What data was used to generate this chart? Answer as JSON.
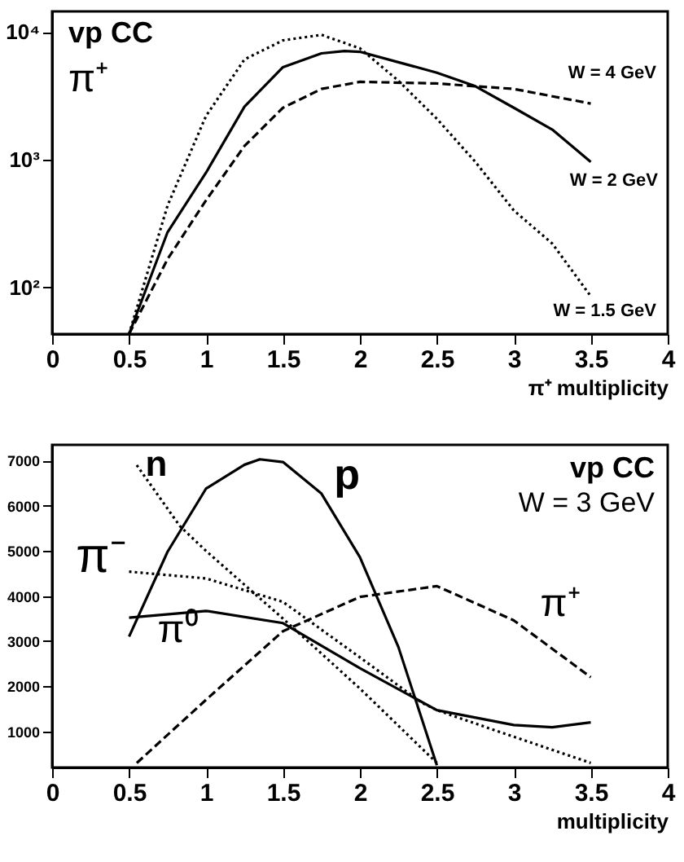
{
  "chart_data": [
    {
      "type": "line",
      "log": "y",
      "xlabel": "π⁺ multiplicity",
      "xlim": [
        0,
        4
      ],
      "xticks": [
        0,
        0.5,
        1,
        1.5,
        2,
        2.5,
        3,
        3.5,
        4
      ],
      "ylim": [
        43,
        14500
      ],
      "yticks": [
        {
          "value": 100,
          "label": "10²"
        },
        {
          "value": 1000,
          "label": "10³"
        },
        {
          "value": 10000,
          "label": "10⁴"
        }
      ],
      "annotations": [
        "vp CC",
        "π⁺",
        "W = 4 GeV",
        "W = 2 GeV",
        "W = 1.5 GeV"
      ],
      "series": [
        {
          "color": "#000000",
          "line_style": "dotted",
          "x": [
            0.5,
            0.75,
            1,
            1.25,
            1.5,
            1.75,
            2,
            2.25,
            2.5,
            2.75,
            3,
            3.25,
            3.5
          ],
          "values": [
            43,
            436,
            2200,
            6100,
            8600,
            9500,
            7450,
            4150,
            2090,
            960,
            400,
            220,
            85
          ]
        },
        {
          "color": "#000000",
          "line_style": "solid",
          "x": [
            0.5,
            0.75,
            1,
            1.25,
            1.5,
            1.75,
            1.9,
            2,
            2.25,
            2.5,
            2.75,
            3,
            3.25,
            3.5
          ],
          "values": [
            43,
            270,
            790,
            2600,
            5300,
            6800,
            7100,
            7000,
            5800,
            4800,
            3760,
            2550,
            1720,
            960
          ]
        },
        {
          "color": "#000000",
          "line_style": "dashed",
          "x": [
            0.5,
            0.75,
            1,
            1.25,
            1.5,
            1.75,
            2,
            2.5,
            3,
            3.5
          ],
          "values": [
            43,
            166,
            480,
            1280,
            2550,
            3580,
            4070,
            3950,
            3580,
            2750
          ]
        }
      ]
    },
    {
      "type": "line",
      "xlabel": "multiplicity",
      "xlim": [
        0,
        4
      ],
      "xticks": [
        0,
        0.5,
        1,
        1.5,
        2,
        2.5,
        3,
        3.5,
        4
      ],
      "ylim": [
        200,
        7350
      ],
      "yticks": [
        1000,
        2000,
        3000,
        4000,
        5000,
        6000,
        7000
      ],
      "annotations": [
        "vp CC",
        "W = 3 GeV",
        "n",
        "p",
        "π⁻",
        "π⁰",
        "π⁺"
      ],
      "series": [
        {
          "color": "#000000",
          "line_style": "solid",
          "x": [
            0.5,
            0.75,
            1,
            1.25,
            1.35,
            1.5,
            1.75,
            2,
            2.25,
            2.5
          ],
          "values": [
            3100,
            4980,
            6380,
            6910,
            7030,
            6970,
            6270,
            4860,
            2870,
            250
          ]
        },
        {
          "color": "#000000",
          "line_style": "dotted",
          "x": [
            0.55,
            0.83,
            1,
            1.5,
            2,
            2.5
          ],
          "values": [
            6900,
            5550,
            5000,
            3500,
            1950,
            300
          ]
        },
        {
          "color": "#000000",
          "line_style": "dotted",
          "x": [
            0.5,
            1,
            1.5,
            2,
            2.4,
            2.5,
            3,
            3.5
          ],
          "values": [
            4540,
            4390,
            3870,
            2640,
            1640,
            1470,
            880,
            300
          ]
        },
        {
          "color": "#000000",
          "line_style": "solid",
          "x": [
            0.5,
            1,
            1.5,
            2,
            2.5,
            3,
            3.25,
            3.5
          ],
          "values": [
            3520,
            3670,
            3400,
            2400,
            1470,
            1140,
            1090,
            1200
          ]
        },
        {
          "color": "#000000",
          "line_style": "dashed",
          "x": [
            0.55,
            1,
            1.5,
            2,
            2.5,
            3,
            3.5
          ],
          "values": [
            300,
            1700,
            3220,
            3980,
            4220,
            3460,
            2200
          ]
        }
      ]
    }
  ]
}
